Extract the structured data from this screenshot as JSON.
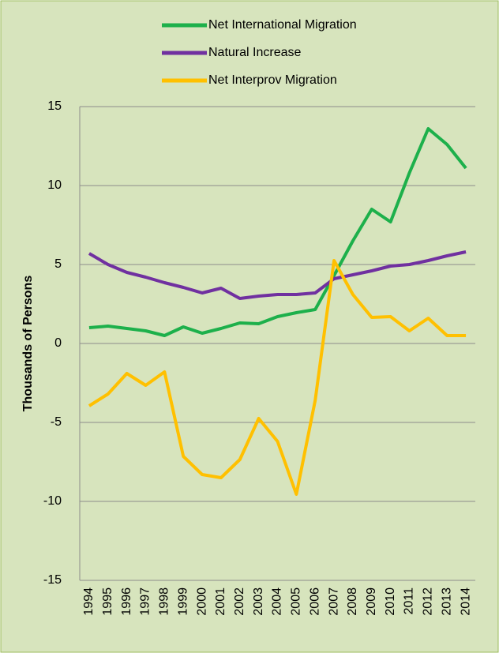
{
  "chart_data": {
    "type": "line",
    "ylabel": "Thousands of Persons",
    "categories": [
      "1994",
      "1995",
      "1996",
      "1997",
      "1998",
      "1999",
      "2000",
      "2001",
      "2002",
      "2003",
      "2004",
      "2005",
      "2006",
      "2007",
      "2008",
      "2009",
      "2010",
      "2011",
      "2012",
      "2013",
      "2014"
    ],
    "series": [
      {
        "name": "Net International Migration",
        "color": "#1db04b",
        "values": [
          1.0,
          1.1,
          0.95,
          0.8,
          0.5,
          1.05,
          0.65,
          0.95,
          1.3,
          1.25,
          1.7,
          1.95,
          2.15,
          4.3,
          6.5,
          8.5,
          7.7,
          10.8,
          13.6,
          12.6,
          11.1
        ]
      },
      {
        "name": "Natural Increase",
        "color": "#7030a0",
        "values": [
          5.7,
          5.0,
          4.5,
          4.2,
          3.85,
          3.55,
          3.2,
          3.5,
          2.85,
          3.0,
          3.1,
          3.1,
          3.2,
          4.1,
          4.35,
          4.6,
          4.9,
          5.0,
          5.25,
          5.55,
          5.8
        ]
      },
      {
        "name": "Net Interprov Migration",
        "color": "#ffc000",
        "values": [
          -3.95,
          -3.2,
          -1.9,
          -2.65,
          -1.8,
          -7.15,
          -8.3,
          -8.5,
          -7.35,
          -4.75,
          -6.2,
          -9.55,
          -3.6,
          5.25,
          3.1,
          1.65,
          1.7,
          0.8,
          1.6,
          0.5,
          0.5
        ]
      }
    ],
    "ylim": [
      -15,
      15
    ],
    "yticks": [
      -15,
      -10,
      -5,
      0,
      5,
      10,
      15
    ],
    "grid": true,
    "legend": "top"
  }
}
